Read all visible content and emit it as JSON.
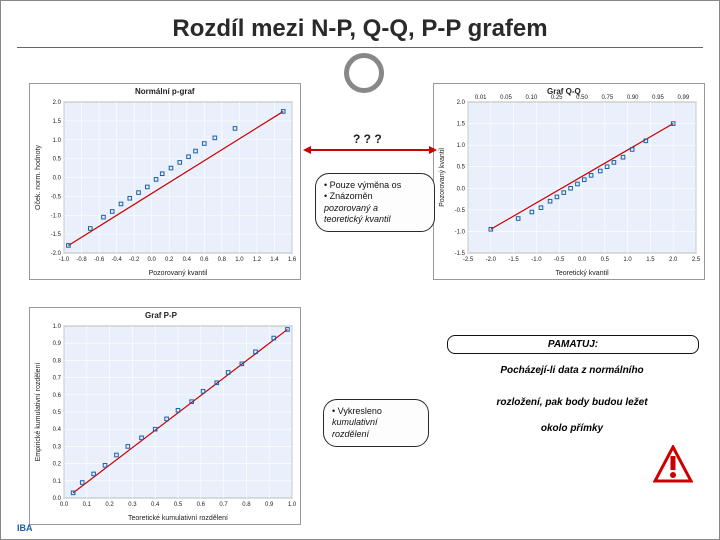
{
  "title": "Rozdíl mezi N-P, Q-Q, P-P grafem",
  "qmarks": "? ? ?",
  "note1": {
    "line1": "• Pouze výměna os",
    "line2": "• Znázorněn",
    "line3": "pozorovaný a",
    "line4": "teoretický kvantil"
  },
  "note2": {
    "line1": "• Vykresleno",
    "line2": "kumulativní",
    "line3": "rozdělení"
  },
  "pamatuj": "PAMATUJ:",
  "pamatuj_sub1": "Pocházejí-li data z normálního",
  "pamatuj_sub2": "rozložení, pak body budou ležet",
  "pamatuj_sub3": "okolo přímky",
  "chart1": {
    "title": "Normální p-graf",
    "xlabel": "Pozorovaný kvantil",
    "ylabel": "Oček. norm. hodnoty",
    "xlim": [
      -1.0,
      1.6
    ],
    "ylim": [
      -2.0,
      2.0
    ],
    "xticks": [
      "-1.0",
      "-0.8",
      "-0.6",
      "-0.4",
      "-0.2",
      "0.0",
      "0.2",
      "0.4",
      "0.6",
      "0.8",
      "1.0",
      "1.2",
      "1.4",
      "1.6"
    ],
    "yticks": [
      "-2.0",
      "-1.5",
      "-1.0",
      "-0.5",
      "0.0",
      "0.5",
      "1.0",
      "1.5",
      "2.0"
    ],
    "points": [
      [
        -0.95,
        -1.8
      ],
      [
        -0.7,
        -1.35
      ],
      [
        -0.55,
        -1.05
      ],
      [
        -0.45,
        -0.9
      ],
      [
        -0.35,
        -0.7
      ],
      [
        -0.25,
        -0.55
      ],
      [
        -0.15,
        -0.4
      ],
      [
        -0.05,
        -0.25
      ],
      [
        0.05,
        -0.05
      ],
      [
        0.12,
        0.1
      ],
      [
        0.22,
        0.25
      ],
      [
        0.32,
        0.4
      ],
      [
        0.42,
        0.55
      ],
      [
        0.5,
        0.7
      ],
      [
        0.6,
        0.9
      ],
      [
        0.72,
        1.05
      ],
      [
        0.95,
        1.3
      ],
      [
        1.5,
        1.75
      ]
    ],
    "line_color": "#cc0000",
    "point_color": "#1a5fa8",
    "bg": "#eaf0fb"
  },
  "chart2": {
    "title": "Graf Q-Q",
    "xlabel": "Teoretický kvantil",
    "ylabel": "Pozorovaný kvantil",
    "xlim": [
      -2.5,
      2.5
    ],
    "ylim": [
      -1.5,
      2.0
    ],
    "xticks": [
      "-2.5",
      "-2.0",
      "-1.5",
      "-1.0",
      "-0.5",
      "0.0",
      "0.5",
      "1.0",
      "1.5",
      "2.0",
      "2.5"
    ],
    "xticks_top": [
      "0.01",
      "0.05",
      "0.10",
      "0.25",
      "0.50",
      "0.75",
      "0.90",
      "0.95",
      "0.99"
    ],
    "yticks": [
      "-1.5",
      "-1.0",
      "-0.5",
      "0.0",
      "0.5",
      "1.0",
      "1.5",
      "2.0"
    ],
    "points": [
      [
        -2.0,
        -0.95
      ],
      [
        -1.4,
        -0.7
      ],
      [
        -1.1,
        -0.55
      ],
      [
        -0.9,
        -0.45
      ],
      [
        -0.7,
        -0.3
      ],
      [
        -0.55,
        -0.2
      ],
      [
        -0.4,
        -0.1
      ],
      [
        -0.25,
        0.0
      ],
      [
        -0.1,
        0.1
      ],
      [
        0.05,
        0.2
      ],
      [
        0.2,
        0.3
      ],
      [
        0.4,
        0.4
      ],
      [
        0.55,
        0.5
      ],
      [
        0.7,
        0.6
      ],
      [
        0.9,
        0.72
      ],
      [
        1.1,
        0.9
      ],
      [
        1.4,
        1.1
      ],
      [
        2.0,
        1.5
      ]
    ],
    "line_color": "#cc0000",
    "point_color": "#1a5fa8",
    "bg": "#eaf0fb"
  },
  "chart3": {
    "title": "Graf P-P",
    "xlabel": "Teoretické kumulativní rozdělení",
    "ylabel": "Empirické kumulativní rozdělení",
    "xlim": [
      0.0,
      1.0
    ],
    "ylim": [
      0.0,
      1.0
    ],
    "xticks": [
      "0.0",
      "0.1",
      "0.2",
      "0.3",
      "0.4",
      "0.5",
      "0.6",
      "0.7",
      "0.8",
      "0.9",
      "1.0"
    ],
    "yticks": [
      "0.0",
      "0.1",
      "0.2",
      "0.3",
      "0.4",
      "0.5",
      "0.6",
      "0.7",
      "0.8",
      "0.9",
      "1.0"
    ],
    "points": [
      [
        0.04,
        0.03
      ],
      [
        0.08,
        0.09
      ],
      [
        0.13,
        0.14
      ],
      [
        0.18,
        0.19
      ],
      [
        0.23,
        0.25
      ],
      [
        0.28,
        0.3
      ],
      [
        0.34,
        0.35
      ],
      [
        0.4,
        0.4
      ],
      [
        0.45,
        0.46
      ],
      [
        0.5,
        0.51
      ],
      [
        0.56,
        0.56
      ],
      [
        0.61,
        0.62
      ],
      [
        0.67,
        0.67
      ],
      [
        0.72,
        0.73
      ],
      [
        0.78,
        0.78
      ],
      [
        0.84,
        0.85
      ],
      [
        0.92,
        0.93
      ],
      [
        0.98,
        0.98
      ]
    ],
    "line_color": "#cc0000",
    "point_color": "#1a5fa8",
    "bg": "#eaf0fb"
  },
  "logo": "IBA"
}
